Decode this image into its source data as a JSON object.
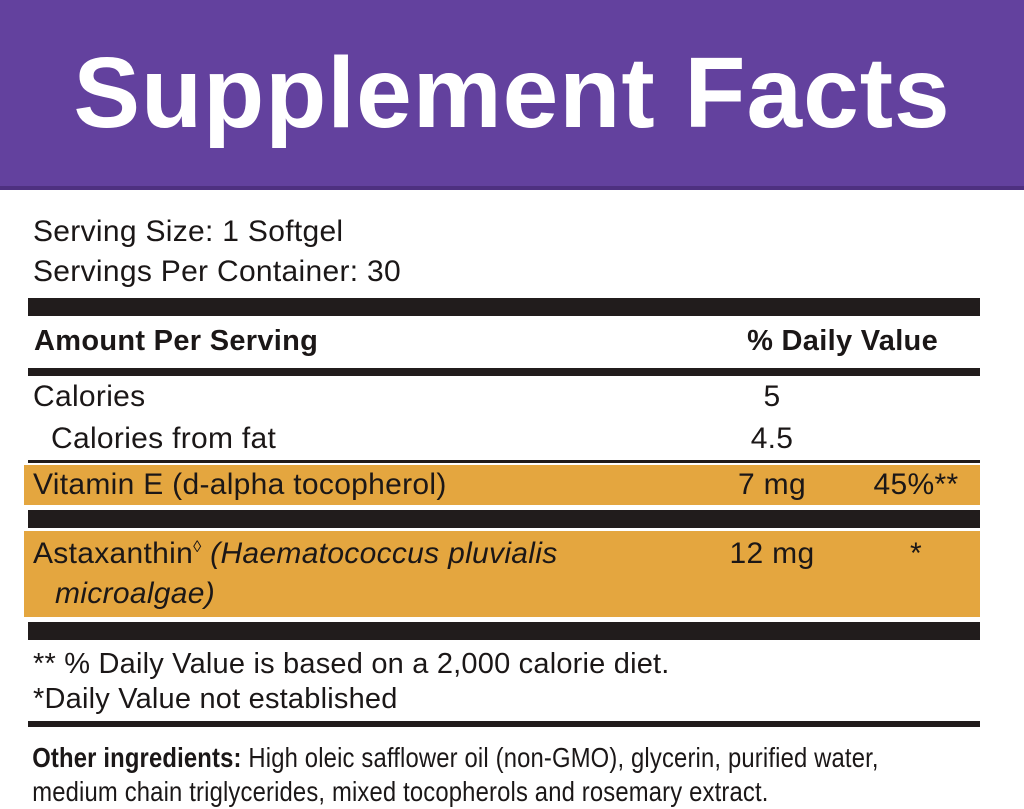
{
  "header": {
    "title": "Supplement Facts"
  },
  "serving_info": {
    "serving_size": "Serving Size: 1 Softgel",
    "servings_per_container": "Servings Per Container: 30"
  },
  "table": {
    "header": {
      "amount_label": "Amount Per Serving",
      "dv_label": "% Daily Value"
    },
    "rows": {
      "calories": {
        "name": "Calories",
        "amount": "5",
        "dv": ""
      },
      "calories_from_fat": {
        "name": "Calories from fat",
        "amount": "4.5",
        "dv": ""
      },
      "vitamin_e": {
        "name": "Vitamin E (d-alpha tocopherol)",
        "amount": "7 mg",
        "dv": "45%**"
      },
      "astaxanthin": {
        "name": "Astaxanthin",
        "sup": "◊",
        "latin": " (Haematococcus pluvialis",
        "line2": "microalgae)",
        "amount": "12 mg",
        "dv": "*"
      }
    }
  },
  "footnotes": {
    "line1": "** % Daily Value is based on a 2,000 calorie diet.",
    "line2": "*Daily Value not established"
  },
  "other_ingredients": {
    "label": "Other ingredients:",
    "line1": " High oleic safflower oil (non-GMO), glycerin, purified water,",
    "line2": "medium chain triglycerides, mixed tocopherols and rosemary extract."
  },
  "colors": {
    "banner_purple": "#63419e",
    "banner_border": "#4e3080",
    "row_highlight_orange": "#e4a63f",
    "divider_black": "#211c1c",
    "title_text": "#ffffff",
    "body_text": "#1b1717"
  }
}
